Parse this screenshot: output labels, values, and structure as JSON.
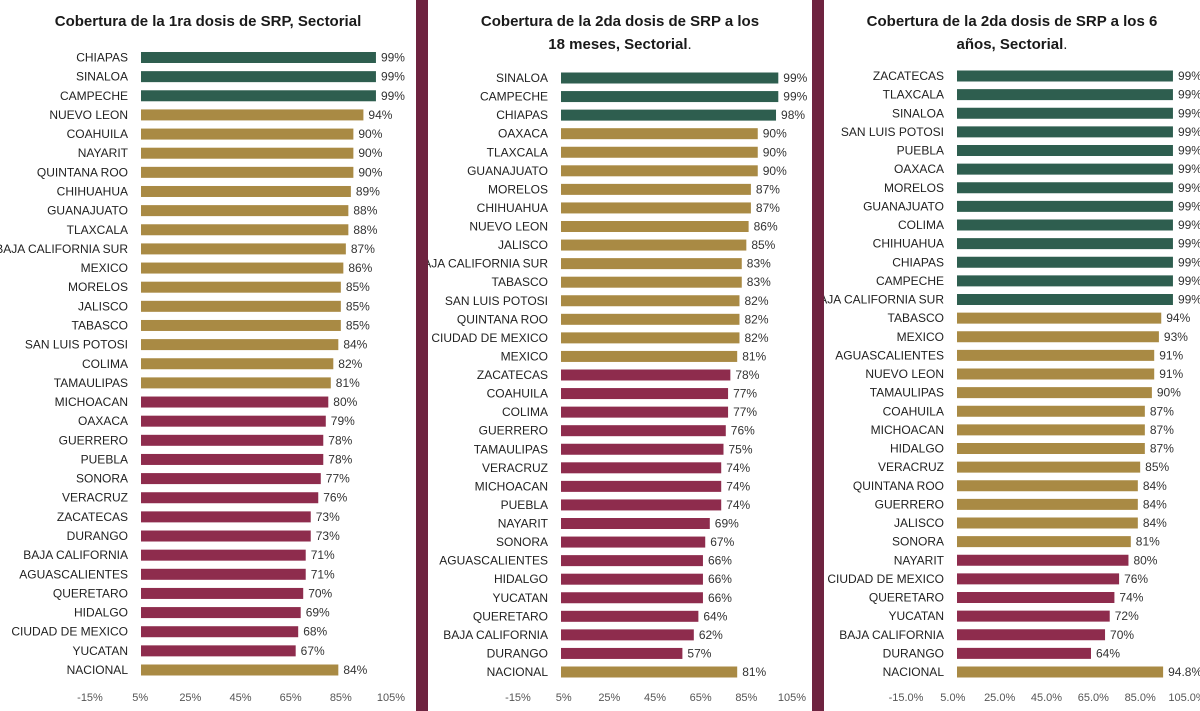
{
  "colors": {
    "high": "#2e5e4f",
    "mid": "#a98a44",
    "low": "#8e2c4d",
    "background": "#5a1f35"
  },
  "chart_data": [
    {
      "type": "bar",
      "orientation": "horizontal",
      "title": "Cobertura de la 1ra dosis de SRP, Sectorial",
      "title_suffix": "",
      "categories": [
        "CHIAPAS",
        "SINALOA",
        "CAMPECHE",
        "NUEVO LEON",
        "COAHUILA",
        "NAYARIT",
        "QUINTANA ROO",
        "CHIHUAHUA",
        "GUANAJUATO",
        "TLAXCALA",
        "BAJA CALIFORNIA SUR",
        "MEXICO",
        "MORELOS",
        "JALISCO",
        "TABASCO",
        "SAN LUIS POTOSI",
        "COLIMA",
        "TAMAULIPAS",
        "MICHOACAN",
        "OAXACA",
        "GUERRERO",
        "PUEBLA",
        "SONORA",
        "VERACRUZ",
        "ZACATECAS",
        "DURANGO",
        "BAJA CALIFORNIA",
        "AGUASCALIENTES",
        "QUERETARO",
        "HIDALGO",
        "CIUDAD DE MEXICO",
        "YUCATAN",
        "NACIONAL"
      ],
      "values": [
        99,
        99,
        99,
        94,
        90,
        90,
        90,
        89,
        88,
        88,
        87,
        86,
        85,
        85,
        85,
        84,
        82,
        81,
        80,
        79,
        78,
        78,
        77,
        76,
        73,
        73,
        71,
        71,
        70,
        69,
        68,
        67,
        84
      ],
      "value_labels": [
        "99%",
        "99%",
        "99%",
        "94%",
        "90%",
        "90%",
        "90%",
        "89%",
        "88%",
        "88%",
        "87%",
        "86%",
        "85%",
        "85%",
        "85%",
        "84%",
        "82%",
        "81%",
        "80%",
        "79%",
        "78%",
        "78%",
        "77%",
        "76%",
        "73%",
        "73%",
        "71%",
        "71%",
        "70%",
        "69%",
        "68%",
        "67%",
        "84%"
      ],
      "color_groups": [
        "high",
        "high",
        "high",
        "mid",
        "mid",
        "mid",
        "mid",
        "mid",
        "mid",
        "mid",
        "mid",
        "mid",
        "mid",
        "mid",
        "mid",
        "mid",
        "mid",
        "mid",
        "low",
        "low",
        "low",
        "low",
        "low",
        "low",
        "low",
        "low",
        "low",
        "low",
        "low",
        "low",
        "low",
        "low",
        "mid"
      ],
      "xlim": [
        -15,
        105
      ],
      "xticks": [
        "-15%",
        "5%",
        "25%",
        "45%",
        "65%",
        "85%",
        "105%"
      ]
    },
    {
      "type": "bar",
      "orientation": "horizontal",
      "title": "Cobertura de la 2da dosis de SRP a los 18 meses, Sectorial",
      "title_suffix": ".",
      "categories": [
        "SINALOA",
        "CAMPECHE",
        "CHIAPAS",
        "OAXACA",
        "TLAXCALA",
        "GUANAJUATO",
        "MORELOS",
        "CHIHUAHUA",
        "NUEVO LEON",
        "JALISCO",
        "BAJA CALIFORNIA SUR",
        "TABASCO",
        "SAN LUIS POTOSI",
        "QUINTANA ROO",
        "CIUDAD DE MEXICO",
        "MEXICO",
        "ZACATECAS",
        "COAHUILA",
        "COLIMA",
        "GUERRERO",
        "TAMAULIPAS",
        "VERACRUZ",
        "MICHOACAN",
        "PUEBLA",
        "NAYARIT",
        "SONORA",
        "AGUASCALIENTES",
        "HIDALGO",
        "YUCATAN",
        "QUERETARO",
        "BAJA CALIFORNIA",
        "DURANGO",
        "NACIONAL"
      ],
      "values": [
        99,
        99,
        98,
        90,
        90,
        90,
        87,
        87,
        86,
        85,
        83,
        83,
        82,
        82,
        82,
        81,
        78,
        77,
        77,
        76,
        75,
        74,
        74,
        74,
        69,
        67,
        66,
        66,
        66,
        64,
        62,
        57,
        81
      ],
      "value_labels": [
        "99%",
        "99%",
        "98%",
        "90%",
        "90%",
        "90%",
        "87%",
        "87%",
        "86%",
        "85%",
        "83%",
        "83%",
        "82%",
        "82%",
        "82%",
        "81%",
        "78%",
        "77%",
        "77%",
        "76%",
        "75%",
        "74%",
        "74%",
        "74%",
        "69%",
        "67%",
        "66%",
        "66%",
        "66%",
        "64%",
        "62%",
        "57%",
        "81%"
      ],
      "color_groups": [
        "high",
        "high",
        "high",
        "mid",
        "mid",
        "mid",
        "mid",
        "mid",
        "mid",
        "mid",
        "mid",
        "mid",
        "mid",
        "mid",
        "mid",
        "mid",
        "low",
        "low",
        "low",
        "low",
        "low",
        "low",
        "low",
        "low",
        "low",
        "low",
        "low",
        "low",
        "low",
        "low",
        "low",
        "low",
        "mid"
      ],
      "xlim": [
        -15,
        105
      ],
      "xticks": [
        "-15%",
        "5%",
        "25%",
        "45%",
        "65%",
        "85%",
        "105%"
      ]
    },
    {
      "type": "bar",
      "orientation": "horizontal",
      "title": "Cobertura de la 2da dosis de SRP a los 6 años, Sectorial",
      "title_suffix": ".",
      "categories": [
        "ZACATECAS",
        "TLAXCALA",
        "SINALOA",
        "SAN LUIS POTOSI",
        "PUEBLA",
        "OAXACA",
        "MORELOS",
        "GUANAJUATO",
        "COLIMA",
        "CHIHUAHUA",
        "CHIAPAS",
        "CAMPECHE",
        "BAJA CALIFORNIA SUR",
        "TABASCO",
        "MEXICO",
        "AGUASCALIENTES",
        "NUEVO LEON",
        "TAMAULIPAS",
        "COAHUILA",
        "MICHOACAN",
        "HIDALGO",
        "VERACRUZ",
        "QUINTANA ROO",
        "GUERRERO",
        "JALISCO",
        "SONORA",
        "NAYARIT",
        "CIUDAD DE MEXICO",
        "QUERETARO",
        "YUCATAN",
        "BAJA CALIFORNIA",
        "DURANGO",
        "NACIONAL"
      ],
      "values": [
        99,
        99,
        99,
        99,
        99,
        99,
        99,
        99,
        99,
        99,
        99,
        99,
        99,
        94,
        93,
        91,
        91,
        90,
        87,
        87,
        87,
        85,
        84,
        84,
        84,
        81,
        80,
        76,
        74,
        72,
        70,
        64,
        94.8
      ],
      "value_labels": [
        "99%",
        "99%",
        "99%",
        "99%",
        "99%",
        "99%",
        "99%",
        "99%",
        "99%",
        "99%",
        "99%",
        "99%",
        "99%",
        "94%",
        "93%",
        "91%",
        "91%",
        "90%",
        "87%",
        "87%",
        "87%",
        "85%",
        "84%",
        "84%",
        "84%",
        "81%",
        "80%",
        "76%",
        "74%",
        "72%",
        "70%",
        "64%",
        "94.8%"
      ],
      "color_groups": [
        "high",
        "high",
        "high",
        "high",
        "high",
        "high",
        "high",
        "high",
        "high",
        "high",
        "high",
        "high",
        "high",
        "mid",
        "mid",
        "mid",
        "mid",
        "mid",
        "mid",
        "mid",
        "mid",
        "mid",
        "mid",
        "mid",
        "mid",
        "mid",
        "low",
        "low",
        "low",
        "low",
        "low",
        "low",
        "mid"
      ],
      "xlim": [
        -15,
        105
      ],
      "xticks": [
        "-15.0%",
        "5.0%",
        "25.0%",
        "45.0%",
        "65.0%",
        "85.0%",
        "105.0%"
      ]
    }
  ]
}
